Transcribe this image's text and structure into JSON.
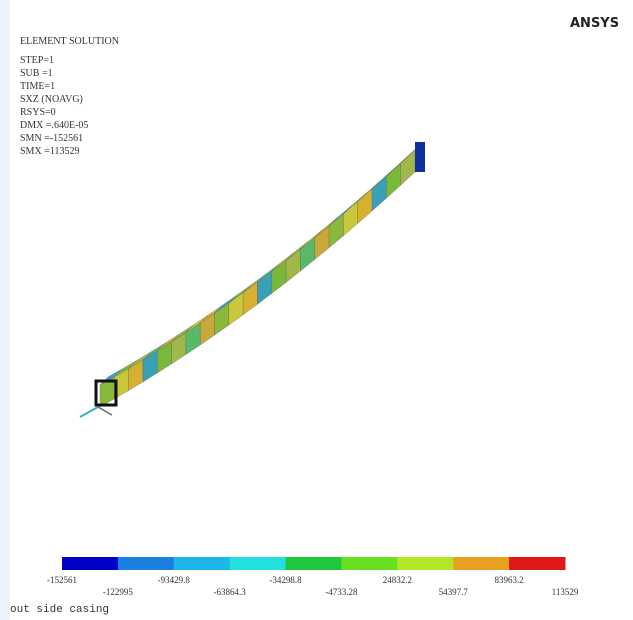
{
  "brand": "ANSYS",
  "info": [
    "ELEMENT SOLUTION",
    "STEP=1",
    "SUB =1",
    "TIME=1",
    "SXZ       (NOAVG)",
    "RSYS=0",
    "DMX =.640E-05",
    "SMN =-152561",
    "SMX =113529"
  ],
  "legend": {
    "colors": [
      "#0000c8",
      "#1a7fe0",
      "#1ab8e8",
      "#22e0e0",
      "#20c840",
      "#66e020",
      "#b4e628",
      "#e8a020",
      "#e01818"
    ],
    "labels": [
      "-152561",
      "-122995",
      "-93429.8",
      "-63864.3",
      "-34298.8",
      "-4733.28",
      "24832.2",
      "54397.7",
      "83963.2",
      "113529"
    ]
  },
  "caption": "out side casing"
}
